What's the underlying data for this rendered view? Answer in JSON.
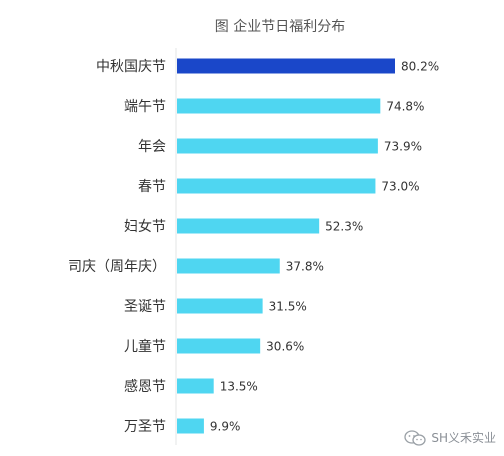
{
  "chart_data": {
    "type": "bar",
    "orientation": "horizontal",
    "title": "图  企业节日福利分布",
    "categories": [
      "中秋国庆节",
      "端午节",
      "年会",
      "春节",
      "妇女节",
      "司庆（周年庆）",
      "圣诞节",
      "儿童节",
      "感恩节",
      "万圣节"
    ],
    "values": [
      80.2,
      74.8,
      73.9,
      73.0,
      52.3,
      37.8,
      31.5,
      30.6,
      13.5,
      9.9
    ],
    "value_labels": [
      "80.2%",
      "74.8%",
      "73.9%",
      "73.0%",
      "52.3%",
      "37.8%",
      "31.5%",
      "30.6%",
      "13.5%",
      "9.9%"
    ],
    "unit": "%",
    "xlim": [
      0,
      80.2
    ],
    "grid": false,
    "colors": {
      "highlight": "#1a47c9",
      "bar": "#4fd6f1",
      "axis": "#e3e4e6",
      "label": "#333333",
      "title": "#555555"
    },
    "highlight_index": 0
  },
  "watermark": {
    "text": "SH义禾实业",
    "icon": "wechat-icon"
  }
}
